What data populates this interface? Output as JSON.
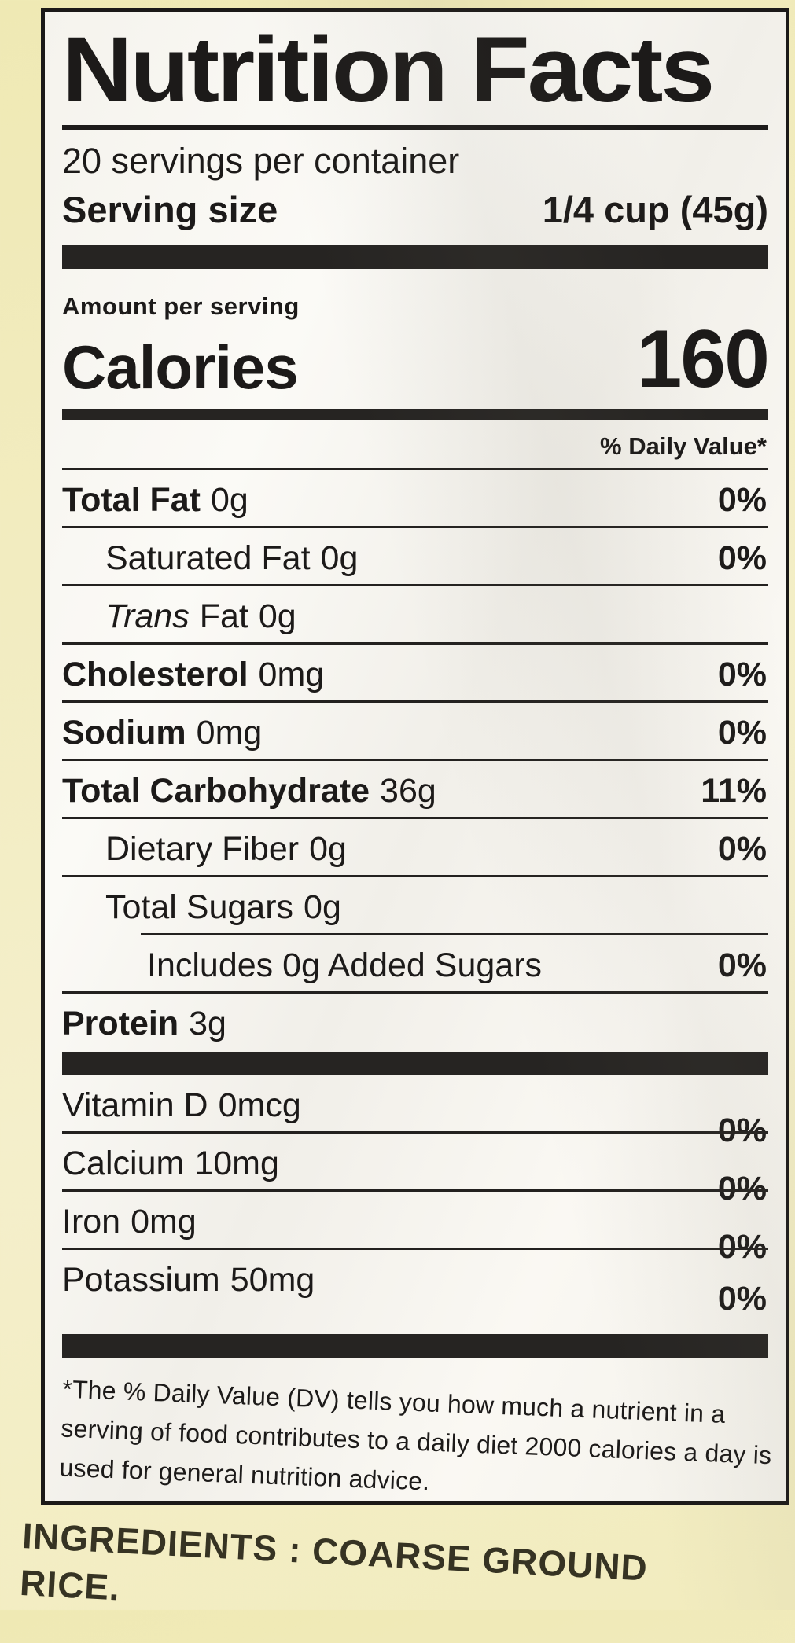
{
  "colors": {
    "bag_background": "#f2ecc0",
    "label_background": "#f9f7f2",
    "ink": "#1c1a19"
  },
  "label": {
    "title": "Nutrition Facts",
    "servings_per_container": "20 servings per container",
    "serving_size": {
      "label": "Serving size",
      "value": "1/4 cup (45g)"
    },
    "amount_per_serving": "Amount per serving",
    "calories": {
      "label": "Calories",
      "value": "160"
    },
    "daily_value_header": "% Daily Value*",
    "rows": [
      {
        "name": "Total Fat",
        "amount": "0g",
        "pct": "0%"
      },
      {
        "name": "Saturated Fat",
        "amount": "0g",
        "pct": "0%"
      },
      {
        "name_italic": "Trans",
        "name": "Fat",
        "amount": "0g",
        "pct": ""
      },
      {
        "name": "Cholesterol",
        "amount": "0mg",
        "pct": "0%"
      },
      {
        "name": "Sodium",
        "amount": "0mg",
        "pct": "0%"
      },
      {
        "name": "Total Carbohydrate",
        "amount": "36g",
        "pct": "11%"
      },
      {
        "name": "Dietary Fiber",
        "amount": "0g",
        "pct": "0%"
      },
      {
        "name": "Total Sugars",
        "amount": "0g",
        "pct": ""
      },
      {
        "name": "Includes 0g Added Sugars",
        "amount": "",
        "pct": "0%"
      },
      {
        "name": "Protein",
        "amount": "3g",
        "pct": ""
      }
    ],
    "vitamins": [
      {
        "name": "Vitamin D",
        "amount": "0mcg",
        "pct": "0%"
      },
      {
        "name": "Calcium",
        "amount": "10mg",
        "pct": "0%"
      },
      {
        "name": "Iron",
        "amount": "0mg",
        "pct": "0%"
      },
      {
        "name": "Potassium",
        "amount": "50mg",
        "pct": "0%"
      }
    ],
    "footnote": "*The % Daily Value (DV) tells you how much a nutrient in a serving of food contributes to a daily diet 2000 calories a day is used for general nutrition advice."
  },
  "ingredients": {
    "text": "INGREDIENTS : COARSE GROUND RICE."
  }
}
